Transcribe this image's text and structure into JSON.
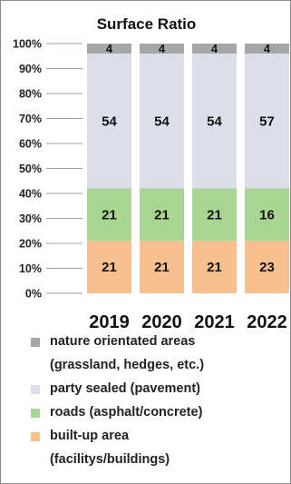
{
  "chart_data": {
    "type": "bar",
    "stacked": true,
    "title": "Surface Ratio",
    "categories": [
      "2019",
      "2020",
      "2021",
      "2022"
    ],
    "series": [
      {
        "name": "built-up area (facilitys/buildings)",
        "values": [
          21,
          21,
          21,
          23
        ],
        "color": "#f8c08f"
      },
      {
        "name": "roads (asphalt/concrete)",
        "values": [
          21,
          21,
          21,
          16
        ],
        "color": "#a8d690"
      },
      {
        "name": "party sealed (pavement)",
        "values": [
          54,
          54,
          54,
          57
        ],
        "color": "#dcdfe9"
      },
      {
        "name": "nature orientated areas (grassland, hedges, etc.)",
        "values": [
          4,
          4,
          4,
          4
        ],
        "color": "#a6a6a6"
      }
    ],
    "display_segments": [
      {
        "bottom": 0,
        "top": 21
      },
      {
        "bottom": 21,
        "top": 42
      },
      {
        "bottom": 42,
        "top": 96
      },
      {
        "bottom": 96,
        "top": 100
      }
    ],
    "yticks": [
      "0%",
      "10%",
      "20%",
      "30%",
      "40%",
      "50%",
      "60%",
      "70%",
      "80%",
      "90%",
      "100%"
    ],
    "ylim": [
      0,
      100
    ],
    "grid": false,
    "legend": "bottom"
  },
  "legend": {
    "items": [
      {
        "line1": "nature orientated areas",
        "line2": "(grassland, hedges, etc.)",
        "color": "#a6a6a6"
      },
      {
        "line1": "party sealed (pavement)",
        "line2": "",
        "color": "#dcdfe9"
      },
      {
        "line1": "roads (asphalt/concrete)",
        "line2": "",
        "color": "#a8d690"
      },
      {
        "line1": "built-up area",
        "line2": "(facilitys/buildings)",
        "color": "#f8c08f"
      }
    ]
  }
}
